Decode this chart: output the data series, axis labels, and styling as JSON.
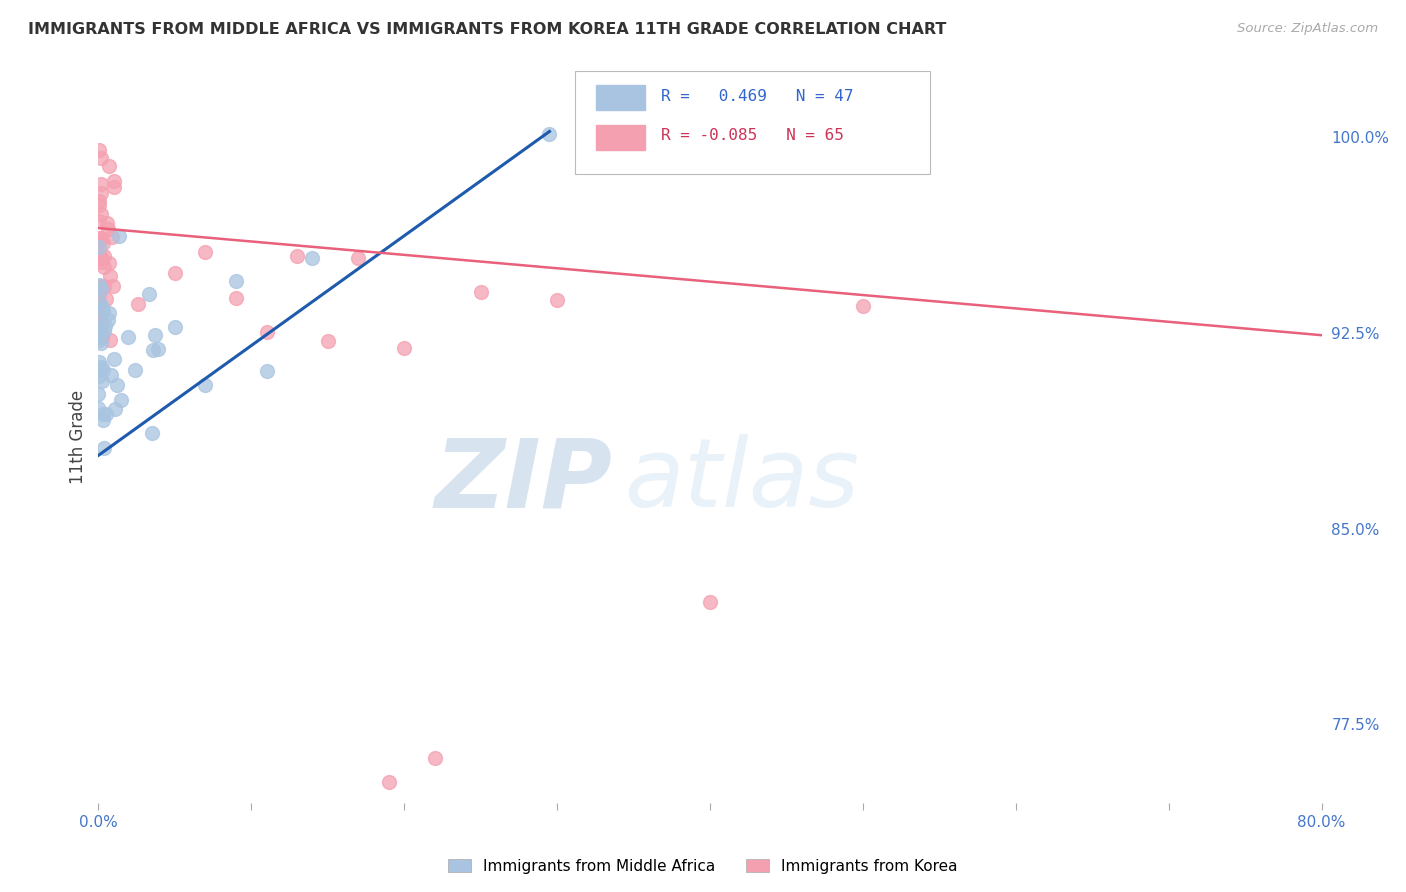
{
  "title": "IMMIGRANTS FROM MIDDLE AFRICA VS IMMIGRANTS FROM KOREA 11TH GRADE CORRELATION CHART",
  "source": "Source: ZipAtlas.com",
  "ylabel": "11th Grade",
  "ytick_labels": [
    "100.0%",
    "92.5%",
    "85.0%",
    "77.5%"
  ],
  "ytick_values": [
    1.0,
    0.925,
    0.85,
    0.775
  ],
  "xmin": 0.0,
  "xmax": 0.8,
  "ymin": 0.745,
  "ymax": 1.025,
  "R_blue": 0.469,
  "N_blue": 47,
  "R_pink": -0.085,
  "N_pink": 65,
  "legend_label_blue": "Immigrants from Middle Africa",
  "legend_label_pink": "Immigrants from Korea",
  "color_blue": "#A8C4E0",
  "color_pink": "#F4A0B0",
  "line_color_blue": "#1F5BAD",
  "line_color_pink": "#E8607A",
  "watermark_zip": "ZIP",
  "watermark_atlas": "atlas",
  "background_color": "#FFFFFF",
  "grid_color": "#CCCCCC",
  "blue_line_x0": 0.0,
  "blue_line_y0": 0.878,
  "blue_line_x1": 0.295,
  "blue_line_y1": 1.002,
  "pink_line_x0": 0.0,
  "pink_line_y0": 0.965,
  "pink_line_x1": 0.8,
  "pink_line_y1": 0.924
}
